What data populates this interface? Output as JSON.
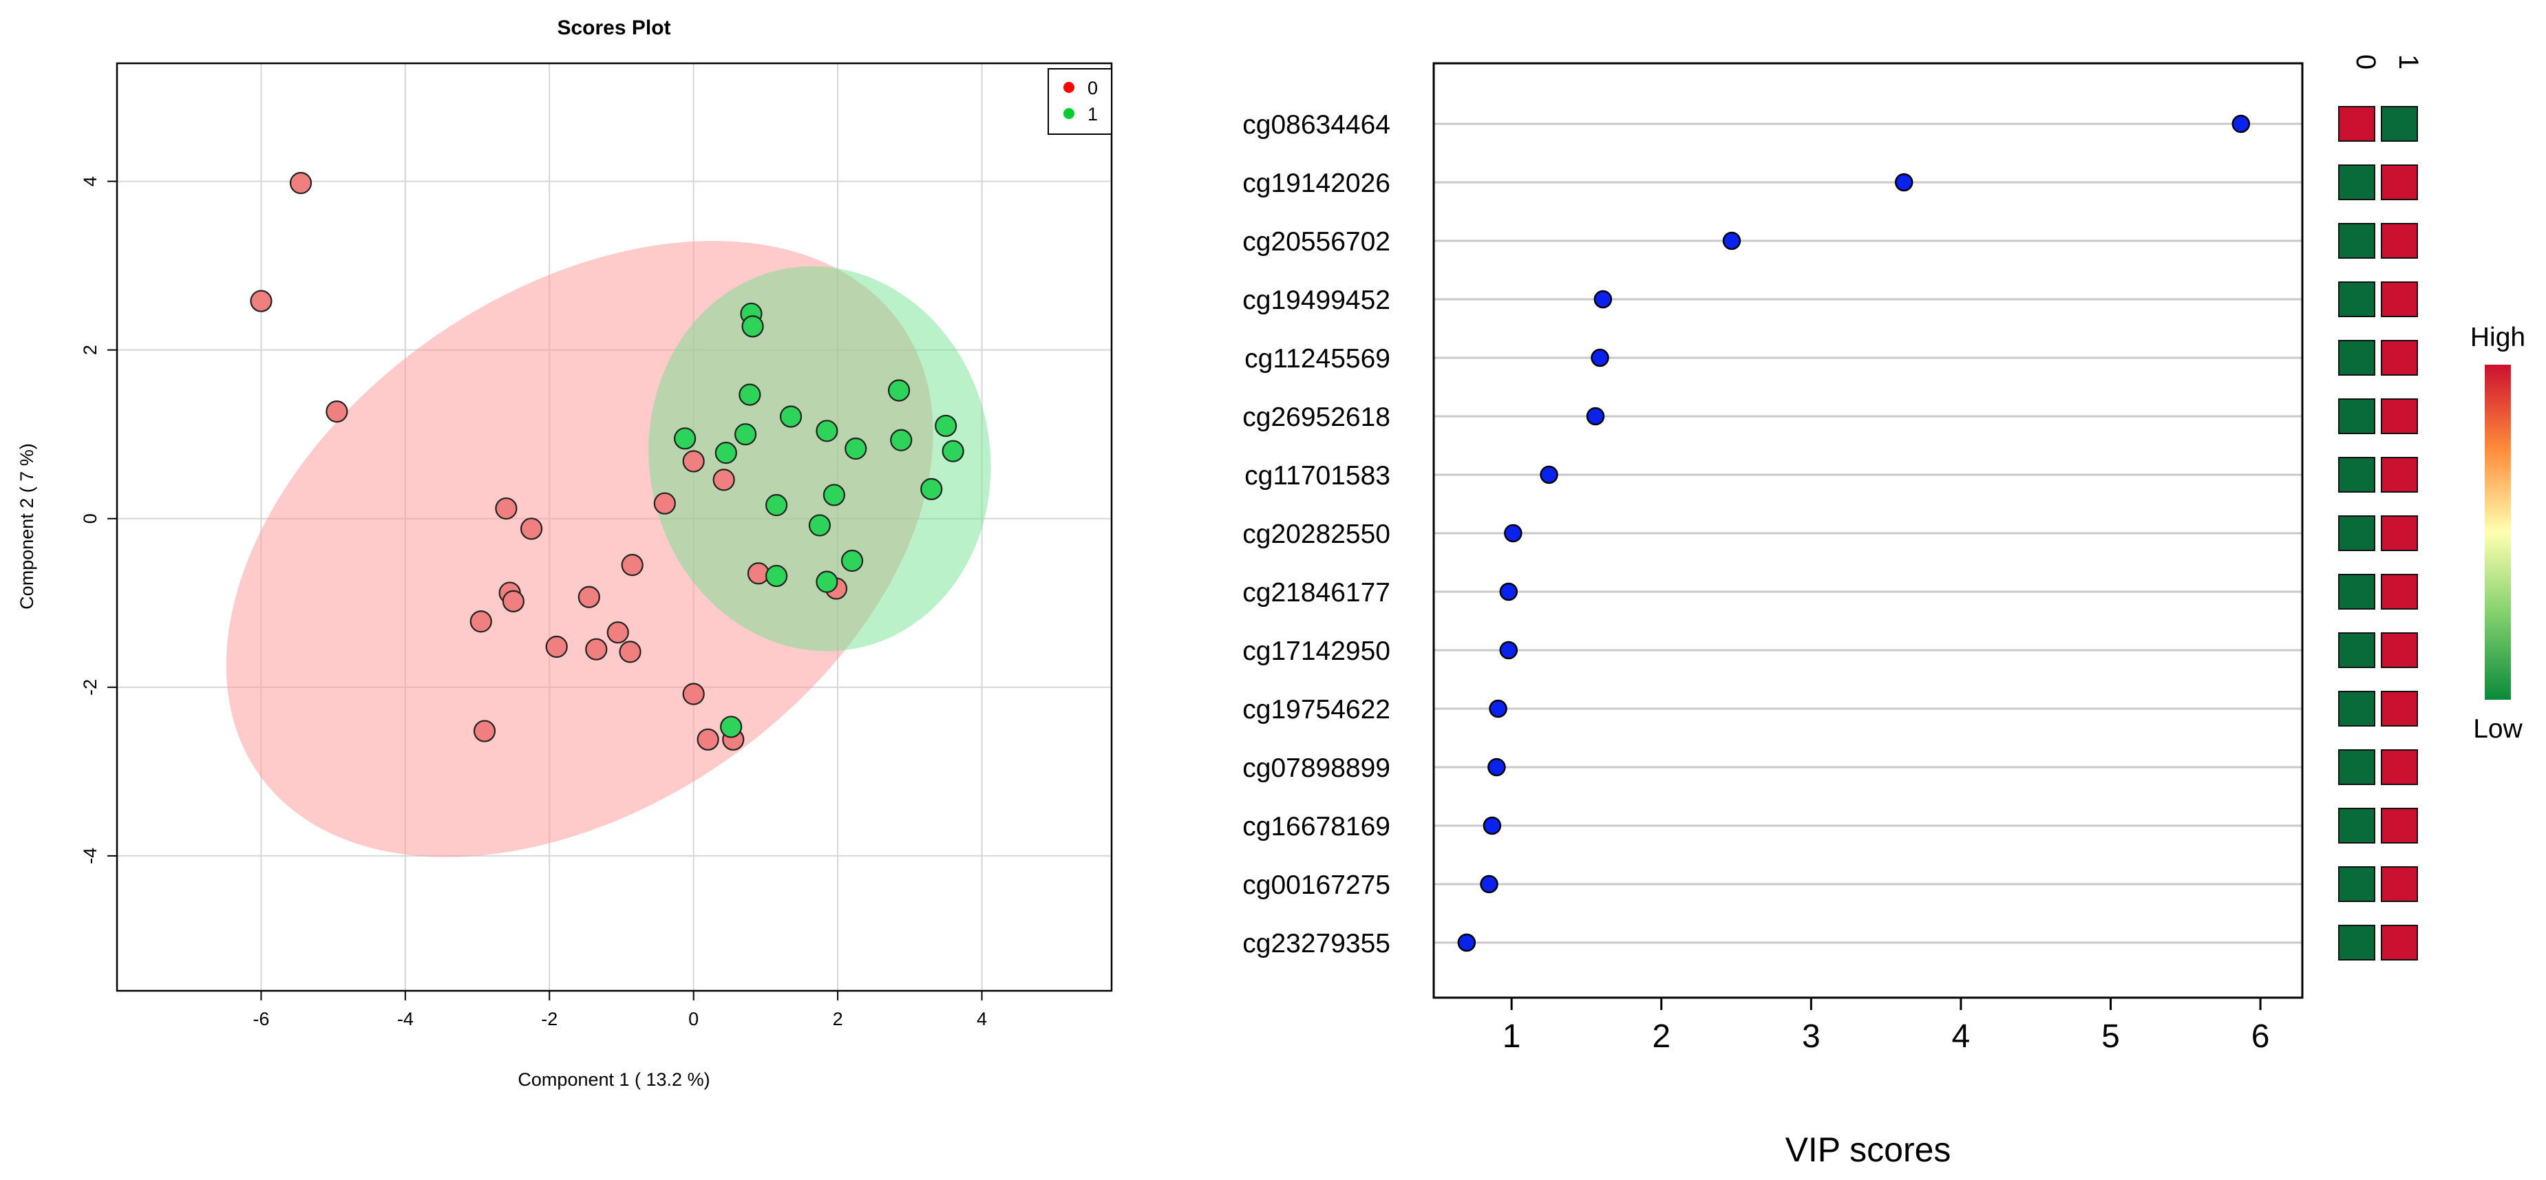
{
  "chart_data": [
    {
      "type": "scatter",
      "title": "Scores Plot",
      "xlabel": "Component 1 ( 13.2 %)",
      "ylabel": "Component 2 ( 7 %)",
      "xlim": [
        -8,
        5.8
      ],
      "ylim": [
        -5.6,
        5.4
      ],
      "xticks": [
        -6,
        -4,
        -2,
        0,
        2,
        4
      ],
      "yticks": [
        -4,
        -2,
        0,
        2,
        4
      ],
      "grid": true,
      "legend_position": "top-right",
      "legend": [
        {
          "label": "0",
          "color": "#ff0000"
        },
        {
          "label": "1",
          "color": "#00cc33"
        }
      ],
      "ellipses": [
        {
          "group": "0",
          "cx": -1.58,
          "cy": -0.36,
          "rx": 5.44,
          "ry": 3.05,
          "angle_deg": -35,
          "color": "#ff9a9a",
          "opacity": 0.52
        },
        {
          "group": "1",
          "cx": 1.75,
          "cy": 0.71,
          "rx": 2.68,
          "ry": 2.02,
          "angle_deg": 80,
          "color": "#6fe28e",
          "opacity": 0.48
        }
      ],
      "series": [
        {
          "name": "0",
          "color": "#f08080",
          "points": [
            [
              -5.45,
              3.98
            ],
            [
              -6.0,
              2.58
            ],
            [
              -4.95,
              1.27
            ],
            [
              -2.6,
              0.12
            ],
            [
              -2.25,
              -0.12
            ],
            [
              -2.55,
              -0.88
            ],
            [
              -2.5,
              -0.98
            ],
            [
              -1.45,
              -0.93
            ],
            [
              -0.85,
              -0.55
            ],
            [
              -2.95,
              -1.22
            ],
            [
              -1.9,
              -1.52
            ],
            [
              -1.35,
              -1.55
            ],
            [
              -1.05,
              -1.35
            ],
            [
              -0.88,
              -1.58
            ],
            [
              -0.4,
              0.18
            ],
            [
              0.0,
              0.68
            ],
            [
              0.42,
              0.46
            ],
            [
              0.9,
              -0.65
            ],
            [
              1.98,
              -0.83
            ],
            [
              0.0,
              -2.08
            ],
            [
              -2.9,
              -2.52
            ],
            [
              0.2,
              -2.62
            ],
            [
              0.55,
              -2.62
            ]
          ]
        },
        {
          "name": "1",
          "color": "#2ed35a",
          "points": [
            [
              0.8,
              2.43
            ],
            [
              0.82,
              2.28
            ],
            [
              0.78,
              1.47
            ],
            [
              1.35,
              1.21
            ],
            [
              1.85,
              1.04
            ],
            [
              2.25,
              0.83
            ],
            [
              2.85,
              1.52
            ],
            [
              2.88,
              0.93
            ],
            [
              3.5,
              1.1
            ],
            [
              3.6,
              0.8
            ],
            [
              3.3,
              0.35
            ],
            [
              -0.12,
              0.95
            ],
            [
              0.45,
              0.78
            ],
            [
              0.72,
              1.0
            ],
            [
              1.15,
              0.16
            ],
            [
              1.95,
              0.28
            ],
            [
              1.75,
              -0.08
            ],
            [
              2.2,
              -0.5
            ],
            [
              1.85,
              -0.75
            ],
            [
              1.15,
              -0.68
            ],
            [
              0.52,
              -2.47
            ]
          ]
        }
      ]
    },
    {
      "type": "dot",
      "title": "",
      "xlabel": "VIP scores",
      "xlim": [
        0.48,
        6.28
      ],
      "xticks": [
        1,
        2,
        3,
        4,
        5,
        6
      ],
      "grid": "horizontal",
      "point_color": "#0a22ee",
      "categories": [
        "cg08634464",
        "cg19142026",
        "cg20556702",
        "cg19499452",
        "cg11245569",
        "cg26952618",
        "cg11701583",
        "cg20282550",
        "cg21846177",
        "cg17142950",
        "cg19754622",
        "cg07898899",
        "cg16678169",
        "cg00167275",
        "cg23279355"
      ],
      "values": [
        5.87,
        3.62,
        2.47,
        1.61,
        1.59,
        1.56,
        1.25,
        1.01,
        0.98,
        0.98,
        0.91,
        0.9,
        0.87,
        0.85,
        0.7
      ],
      "heatmap_columns": [
        "0",
        "1"
      ],
      "heatmap_levels": [
        [
          "High",
          "Low"
        ],
        [
          "Low",
          "High"
        ],
        [
          "Low",
          "High"
        ],
        [
          "Low",
          "High"
        ],
        [
          "Low",
          "High"
        ],
        [
          "Low",
          "High"
        ],
        [
          "Low",
          "High"
        ],
        [
          "Low",
          "High"
        ],
        [
          "Low",
          "High"
        ],
        [
          "Low",
          "High"
        ],
        [
          "Low",
          "High"
        ],
        [
          "Low",
          "High"
        ],
        [
          "Low",
          "High"
        ],
        [
          "Low",
          "High"
        ],
        [
          "Low",
          "High"
        ]
      ],
      "heatmap_colors": {
        "High": "#cc1030",
        "Low": "#0a6b3a"
      },
      "colorbar": {
        "high_label": "High",
        "low_label": "Low",
        "stops": [
          "#cc1030",
          "#ff8a3a",
          "#ffffb0",
          "#7fcf6b",
          "#0a8a3a"
        ]
      }
    }
  ]
}
